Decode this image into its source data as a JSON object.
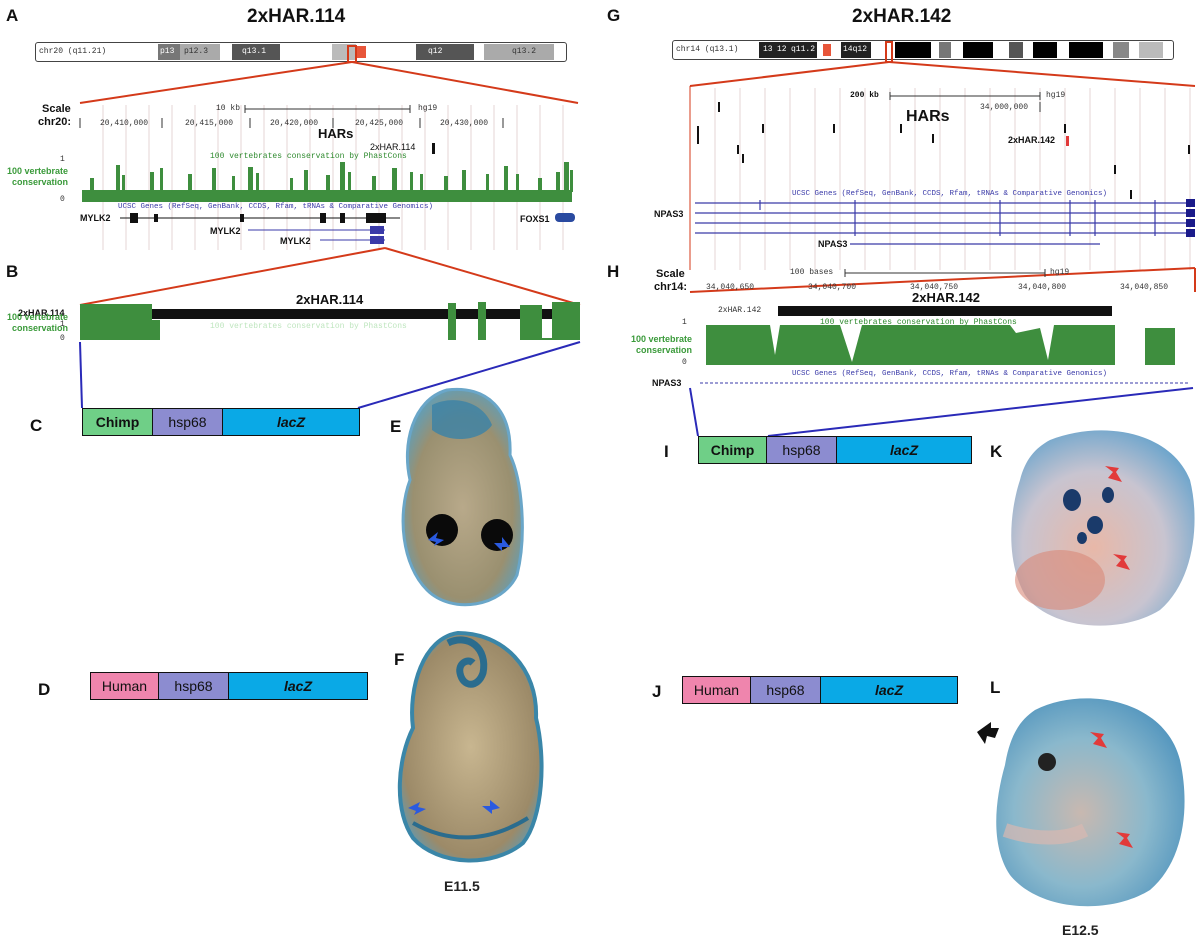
{
  "left": {
    "title": "2xHAR.114",
    "ideogram_text": "chr20 (q11.21)",
    "ideogram_bands": [
      "p13",
      "p12.3",
      "q13.1",
      "q12",
      "q13.2"
    ],
    "scale_label": "Scale",
    "chr_label": "chr20:",
    "scale_text": "10 kb",
    "assembly": "hg19",
    "coordinates": [
      "20,410,000",
      "20,415,000",
      "20,420,000",
      "20,425,000",
      "20,430,000"
    ],
    "hars_label": "HARs",
    "har_item": "2xHAR.114",
    "cons_label": "100 vertebrate conservation",
    "cons_track_text": "100 vertebrates conservation by PhastCons",
    "genes_track_text": "UCSC Genes (RefSeq, GenBank, CCDS, Rfam, tRNAs & Comparative Genomics)",
    "genes": [
      "MYLK2",
      "MYLK2",
      "MYLK2",
      "FOXS1"
    ],
    "zoom_title": "2xHAR.114",
    "zoom_track_label": "2xHAR.114",
    "zoom_cons_text": "100 vertebrates conservation by PhastCons",
    "tick_one": "1",
    "tick_zero": "0",
    "construct_chimp": [
      "Chimp",
      "hsp68",
      "lacZ"
    ],
    "construct_human": [
      "Human",
      "hsp68",
      "lacZ"
    ],
    "stage": "E11.5"
  },
  "right": {
    "title": "2xHAR.142",
    "ideogram_text": "chr14 (q13.1)",
    "ideogram_bands": [
      "13",
      "12",
      "q11.2",
      "14q12"
    ],
    "scale_text": "200 kb",
    "assembly": "hg19",
    "coordinate_top": "34,000,000",
    "hars_label": "HARs",
    "har_item": "2xHAR.142",
    "genes_track_text": "UCSC Genes (RefSeq, GenBank, CCDS, Rfam, tRNAs & Comparative Genomics)",
    "gene_name": "NPAS3",
    "gene_name_2": "NPAS3",
    "scale_label": "Scale",
    "chr_label": "chr14:",
    "scale_text_2": "100 bases",
    "assembly_2": "hg19",
    "coordinates": [
      "34,040,650",
      "34,040,700",
      "34,040,750",
      "34,040,800",
      "34,040,850"
    ],
    "zoom_title": "2xHAR.142",
    "zoom_track_label": "2xHAR.142",
    "cons_track_text": "100 vertebrates conservation by PhastCons",
    "cons_label": "100 vertebrate conservation",
    "genes_track_text_2": "UCSC Genes (RefSeq, GenBank, CCDS, Rfam, tRNAs & Comparative Genomics)",
    "gene_name_3": "NPAS3",
    "tick_one": "1",
    "tick_zero": "0",
    "construct_chimp": [
      "Chimp",
      "hsp68",
      "lacZ"
    ],
    "construct_human": [
      "Human",
      "hsp68",
      "lacZ"
    ],
    "stage": "E12.5"
  },
  "panel_letters": [
    "A",
    "B",
    "C",
    "D",
    "E",
    "F",
    "G",
    "H",
    "I",
    "J",
    "K",
    "L"
  ],
  "colors": {
    "conservation": "#3e8e3e",
    "zoom_lines": "#d43a1a",
    "construct_lines": "#2a2ab8",
    "arrow_blue": "#2a5ae0",
    "arrow_red": "#e23a3a"
  }
}
